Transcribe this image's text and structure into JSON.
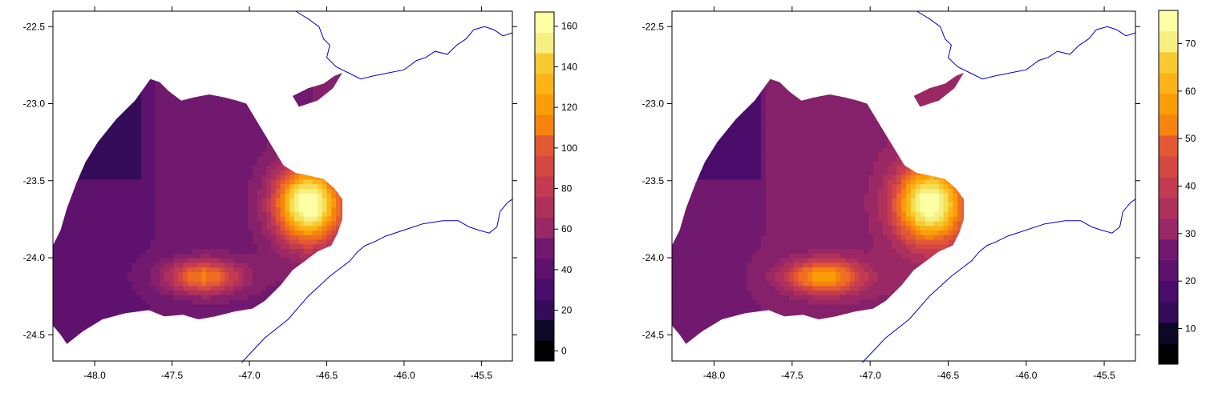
{
  "chart_data": [
    {
      "type": "heatmap",
      "title": "",
      "xlabel": "",
      "ylabel": "",
      "xlim": [
        -48.27,
        -45.3
      ],
      "ylim": [
        -24.67,
        -22.4
      ],
      "x_ticks": [
        "-48.0",
        "-47.5",
        "-47.0",
        "-46.5",
        "-46.0",
        "-45.5"
      ],
      "x_tick_values": [
        -48.0,
        -47.5,
        -47.0,
        -46.5,
        -46.0,
        -45.5
      ],
      "y_ticks": [
        "-22.5",
        "-23.0",
        "-23.5",
        "-24.0",
        "-24.5"
      ],
      "y_tick_values": [
        -22.5,
        -23.0,
        -23.5,
        -24.0,
        -24.5
      ],
      "colorbar_ticks": [
        "0",
        "20",
        "40",
        "60",
        "80",
        "100",
        "120",
        "140",
        "160"
      ],
      "colorbar_tick_values": [
        0,
        20,
        40,
        60,
        80,
        100,
        120,
        140,
        160
      ],
      "colorbar_range": [
        -5,
        167
      ],
      "value_range": [
        0,
        165
      ],
      "hotspots": [
        {
          "lon": -46.62,
          "lat": -23.65,
          "value": 165
        },
        {
          "lon": -47.3,
          "lat": -24.12,
          "value": 110
        }
      ],
      "background_value": 45,
      "coastline_color": "#0000cc",
      "colormap": "inferno",
      "grid": false,
      "legend": "right colorbar"
    },
    {
      "type": "heatmap",
      "title": "",
      "xlabel": "",
      "ylabel": "",
      "xlim": [
        -48.27,
        -45.3
      ],
      "ylim": [
        -24.67,
        -22.4
      ],
      "x_ticks": [
        "-48.0",
        "-47.5",
        "-47.0",
        "-46.5",
        "-46.0",
        "-45.5"
      ],
      "x_tick_values": [
        -48.0,
        -47.5,
        -47.0,
        -46.5,
        -46.0,
        -45.5
      ],
      "y_ticks": [
        "-22.5",
        "-23.0",
        "-23.5",
        "-24.0",
        "-24.5"
      ],
      "y_tick_values": [
        -22.5,
        -23.0,
        -23.5,
        -24.0,
        -24.5
      ],
      "colorbar_ticks": [
        "10",
        "20",
        "30",
        "40",
        "50",
        "60",
        "70"
      ],
      "colorbar_tick_values": [
        10,
        20,
        30,
        40,
        50,
        60,
        70
      ],
      "colorbar_range": [
        2.5,
        77
      ],
      "value_range": [
        5,
        75
      ],
      "hotspots": [
        {
          "lon": -46.62,
          "lat": -23.65,
          "value": 75
        },
        {
          "lon": -47.3,
          "lat": -24.12,
          "value": 58
        }
      ],
      "background_value": 28,
      "coastline_color": "#0000cc",
      "colormap": "inferno",
      "grid": false,
      "legend": "right colorbar"
    }
  ]
}
